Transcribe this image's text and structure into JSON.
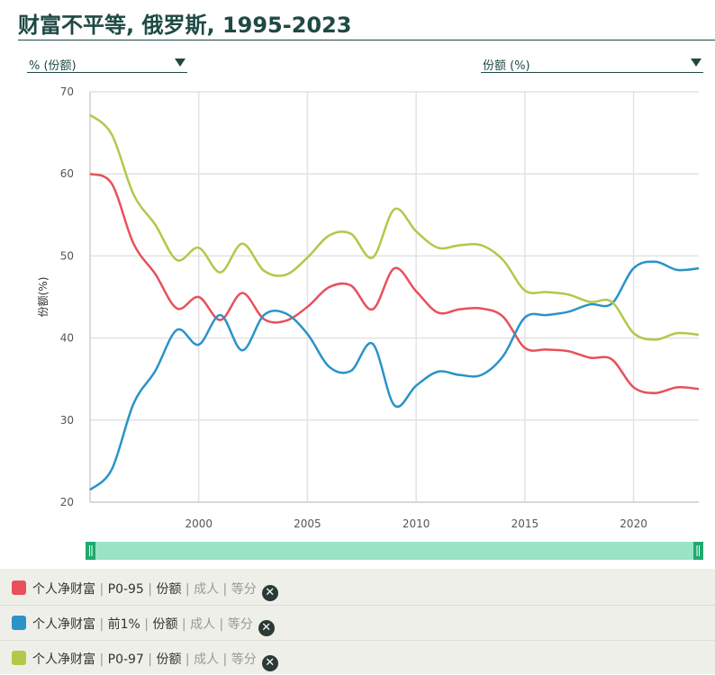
{
  "title": "财富不平等, 俄罗斯, 1995-2023",
  "selectors": {
    "left": "% (份额)",
    "right": "份额 (%)"
  },
  "chart_data": {
    "type": "line",
    "ylabel": "份额(%)",
    "xlabel": "",
    "xlim": [
      1995,
      2023
    ],
    "ylim": [
      20,
      70
    ],
    "xticks": [
      2000,
      2005,
      2010,
      2015,
      2020
    ],
    "yticks": [
      20,
      30,
      40,
      50,
      60,
      70
    ],
    "grid": true,
    "series": [
      {
        "name": "个人净财富 | P0-95 | 份额 | 成人 | 等分",
        "color": "#e8505b",
        "x": [
          1995,
          1996,
          1997,
          1998,
          1999,
          2000,
          2001,
          2002,
          2003,
          2004,
          2005,
          2006,
          2007,
          2008,
          2009,
          2010,
          2011,
          2012,
          2013,
          2014,
          2015,
          2016,
          2017,
          2018,
          2019,
          2020,
          2021,
          2022,
          2023
        ],
        "values": [
          60.0,
          58.8,
          51.5,
          47.8,
          43.6,
          45.0,
          42.2,
          45.5,
          42.3,
          42.1,
          43.8,
          46.2,
          46.4,
          43.5,
          48.5,
          45.7,
          43.1,
          43.5,
          43.6,
          42.6,
          38.8,
          38.6,
          38.4,
          37.6,
          37.4,
          34.0,
          33.3,
          34.0,
          33.8
        ]
      },
      {
        "name": "个人净财富 | 前1% | 份额 | 成人 | 等分",
        "color": "#2a93c8",
        "x": [
          1995,
          1996,
          1997,
          1998,
          1999,
          2000,
          2001,
          2002,
          2003,
          2004,
          2005,
          2006,
          2007,
          2008,
          2009,
          2010,
          2011,
          2012,
          2013,
          2014,
          2015,
          2016,
          2017,
          2018,
          2019,
          2020,
          2021,
          2022,
          2023
        ],
        "values": [
          21.5,
          24.0,
          32.0,
          36.0,
          41.0,
          39.2,
          42.8,
          38.5,
          42.8,
          43.0,
          40.5,
          36.5,
          36.0,
          39.3,
          31.8,
          34.2,
          35.9,
          35.5,
          35.5,
          37.8,
          42.5,
          42.8,
          43.2,
          44.1,
          44.2,
          48.5,
          49.3,
          48.3,
          48.5
        ]
      },
      {
        "name": "个人净财富 | P0-97 | 份额 | 成人 | 等分",
        "color": "#b2c849",
        "x": [
          1995,
          1996,
          1997,
          1998,
          1999,
          2000,
          2001,
          2002,
          2003,
          2004,
          2005,
          2006,
          2007,
          2008,
          2009,
          2010,
          2011,
          2012,
          2013,
          2014,
          2015,
          2016,
          2017,
          2018,
          2019,
          2020,
          2021,
          2022,
          2023
        ],
        "values": [
          67.2,
          64.8,
          57.5,
          53.8,
          49.5,
          51.0,
          48.0,
          51.5,
          48.2,
          47.7,
          49.8,
          52.5,
          52.7,
          49.8,
          55.7,
          53.0,
          51.0,
          51.3,
          51.3,
          49.5,
          45.8,
          45.6,
          45.3,
          44.4,
          44.4,
          40.6,
          39.8,
          40.6,
          40.4
        ]
      }
    ]
  },
  "legend": [
    {
      "main": "个人净财富",
      "p1": "P0-95",
      "p2": "份额",
      "p3": "成人",
      "p4": "等分",
      "color": "#e8505b"
    },
    {
      "main": "个人净财富",
      "p1": "前1%",
      "p2": "份额",
      "p3": "成人",
      "p4": "等分",
      "color": "#2a93c8"
    },
    {
      "main": "个人净财富",
      "p1": "P0-97",
      "p2": "份额",
      "p3": "成人",
      "p4": "等分",
      "color": "#b2c849"
    }
  ],
  "close_glyph": "✕"
}
